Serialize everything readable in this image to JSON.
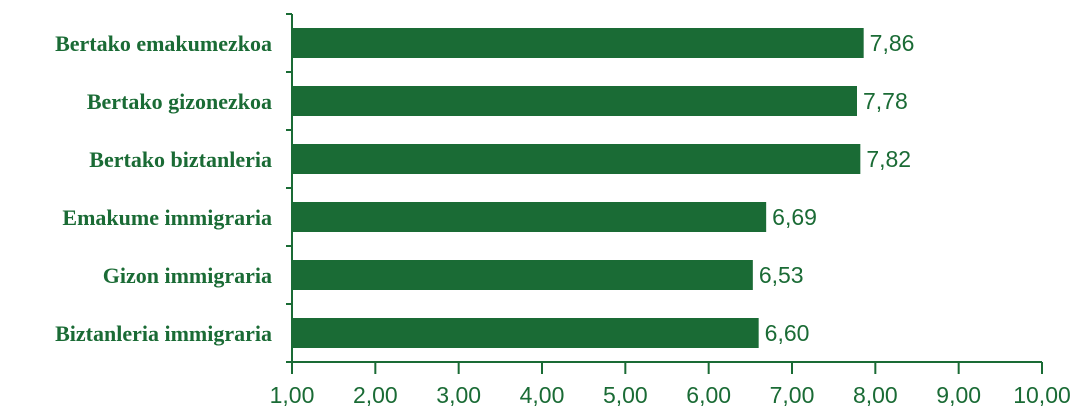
{
  "chart_data": {
    "type": "bar",
    "orientation": "horizontal",
    "categories": [
      "Bertako emakumezkoa",
      "Bertako gizonezkoa",
      "Bertako biztanleria",
      "Emakume immigraria",
      "Gizon immigraria",
      "Biztanleria immigraria"
    ],
    "values": [
      7.86,
      7.78,
      7.82,
      6.69,
      6.53,
      6.6
    ],
    "value_labels": [
      "7,86",
      "7,78",
      "7,82",
      "6,69",
      "6,53",
      "6,60"
    ],
    "xlim": [
      1,
      10
    ],
    "xticks": [
      1,
      2,
      3,
      4,
      5,
      6,
      7,
      8,
      9,
      10
    ],
    "xtick_labels": [
      "1,00",
      "2,00",
      "3,00",
      "4,00",
      "5,00",
      "6,00",
      "7,00",
      "8,00",
      "9,00",
      "10,00"
    ],
    "title": "",
    "xlabel": "",
    "ylabel": "",
    "grid": false,
    "legend": "none",
    "colors": {
      "bar": "#1a6b35",
      "text": "#1a6b35",
      "axis": "#1a6b35"
    }
  }
}
